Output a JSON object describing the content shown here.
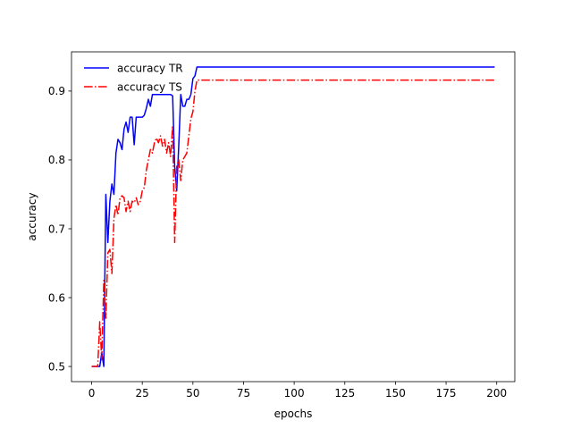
{
  "chart_data": {
    "type": "line",
    "title": "",
    "xlabel": "epochs",
    "ylabel": "accuracy",
    "xlim": [
      -9.95,
      208.95
    ],
    "ylim": [
      0.478,
      0.957
    ],
    "xticks": [
      0,
      25,
      50,
      75,
      100,
      125,
      150,
      175,
      200
    ],
    "yticks": [
      0.5,
      0.6,
      0.7,
      0.8,
      0.9
    ],
    "xtick_labels": [
      "0",
      "25",
      "50",
      "75",
      "100",
      "125",
      "150",
      "175",
      "200"
    ],
    "ytick_labels": [
      "0.5",
      "0.6",
      "0.7",
      "0.8",
      "0.9"
    ],
    "grid": false,
    "legend_position": "top-left",
    "series": [
      {
        "name": "accuracy TR",
        "color": "#0000ff",
        "linestyle": "solid",
        "points": [
          [
            0,
            0.5
          ],
          [
            1,
            0.5
          ],
          [
            2,
            0.5
          ],
          [
            3,
            0.5
          ],
          [
            4,
            0.5
          ],
          [
            5,
            0.52
          ],
          [
            6,
            0.5
          ],
          [
            7,
            0.75
          ],
          [
            8,
            0.68
          ],
          [
            9,
            0.74
          ],
          [
            10,
            0.765
          ],
          [
            11,
            0.75
          ],
          [
            12,
            0.81
          ],
          [
            13,
            0.83
          ],
          [
            14,
            0.825
          ],
          [
            15,
            0.815
          ],
          [
            16,
            0.845
          ],
          [
            17,
            0.855
          ],
          [
            18,
            0.84
          ],
          [
            19,
            0.862
          ],
          [
            20,
            0.862
          ],
          [
            21,
            0.822
          ],
          [
            22,
            0.862
          ],
          [
            23,
            0.862
          ],
          [
            24,
            0.862
          ],
          [
            25,
            0.862
          ],
          [
            26,
            0.865
          ],
          [
            27,
            0.875
          ],
          [
            28,
            0.888
          ],
          [
            29,
            0.878
          ],
          [
            30,
            0.895
          ],
          [
            31,
            0.895
          ],
          [
            32,
            0.895
          ],
          [
            33,
            0.895
          ],
          [
            34,
            0.895
          ],
          [
            35,
            0.895
          ],
          [
            36,
            0.895
          ],
          [
            37,
            0.895
          ],
          [
            38,
            0.895
          ],
          [
            39,
            0.895
          ],
          [
            40,
            0.893
          ],
          [
            41,
            0.79
          ],
          [
            42,
            0.755
          ],
          [
            43,
            0.82
          ],
          [
            44,
            0.895
          ],
          [
            45,
            0.878
          ],
          [
            46,
            0.878
          ],
          [
            47,
            0.888
          ],
          [
            48,
            0.888
          ],
          [
            49,
            0.895
          ],
          [
            50,
            0.918
          ],
          [
            51,
            0.922
          ],
          [
            52,
            0.935
          ],
          [
            60,
            0.935
          ],
          [
            80,
            0.935
          ],
          [
            100,
            0.935
          ],
          [
            120,
            0.935
          ],
          [
            140,
            0.935
          ],
          [
            160,
            0.935
          ],
          [
            180,
            0.935
          ],
          [
            199,
            0.935
          ]
        ]
      },
      {
        "name": "accuracy TS",
        "color": "#ff0000",
        "linestyle": "dashdot",
        "points": [
          [
            0,
            0.5
          ],
          [
            1,
            0.5
          ],
          [
            2,
            0.5
          ],
          [
            3,
            0.5
          ],
          [
            4,
            0.565
          ],
          [
            5,
            0.51
          ],
          [
            6,
            0.625
          ],
          [
            7,
            0.57
          ],
          [
            8,
            0.665
          ],
          [
            9,
            0.67
          ],
          [
            10,
            0.635
          ],
          [
            11,
            0.715
          ],
          [
            12,
            0.735
          ],
          [
            13,
            0.72
          ],
          [
            14,
            0.745
          ],
          [
            15,
            0.748
          ],
          [
            16,
            0.745
          ],
          [
            17,
            0.725
          ],
          [
            18,
            0.74
          ],
          [
            19,
            0.725
          ],
          [
            20,
            0.74
          ],
          [
            21,
            0.738
          ],
          [
            22,
            0.745
          ],
          [
            23,
            0.735
          ],
          [
            24,
            0.74
          ],
          [
            25,
            0.755
          ],
          [
            26,
            0.76
          ],
          [
            27,
            0.785
          ],
          [
            28,
            0.8
          ],
          [
            29,
            0.815
          ],
          [
            30,
            0.81
          ],
          [
            31,
            0.825
          ],
          [
            32,
            0.832
          ],
          [
            33,
            0.825
          ],
          [
            34,
            0.835
          ],
          [
            35,
            0.82
          ],
          [
            36,
            0.83
          ],
          [
            37,
            0.81
          ],
          [
            38,
            0.825
          ],
          [
            39,
            0.805
          ],
          [
            40,
            0.85
          ],
          [
            41,
            0.68
          ],
          [
            42,
            0.79
          ],
          [
            43,
            0.8
          ],
          [
            44,
            0.77
          ],
          [
            45,
            0.8
          ],
          [
            46,
            0.805
          ],
          [
            47,
            0.81
          ],
          [
            48,
            0.835
          ],
          [
            49,
            0.86
          ],
          [
            50,
            0.87
          ],
          [
            51,
            0.9
          ],
          [
            52,
            0.916
          ],
          [
            60,
            0.916
          ],
          [
            80,
            0.916
          ],
          [
            100,
            0.916
          ],
          [
            120,
            0.916
          ],
          [
            140,
            0.916
          ],
          [
            160,
            0.916
          ],
          [
            180,
            0.916
          ],
          [
            199,
            0.916
          ]
        ]
      }
    ]
  }
}
